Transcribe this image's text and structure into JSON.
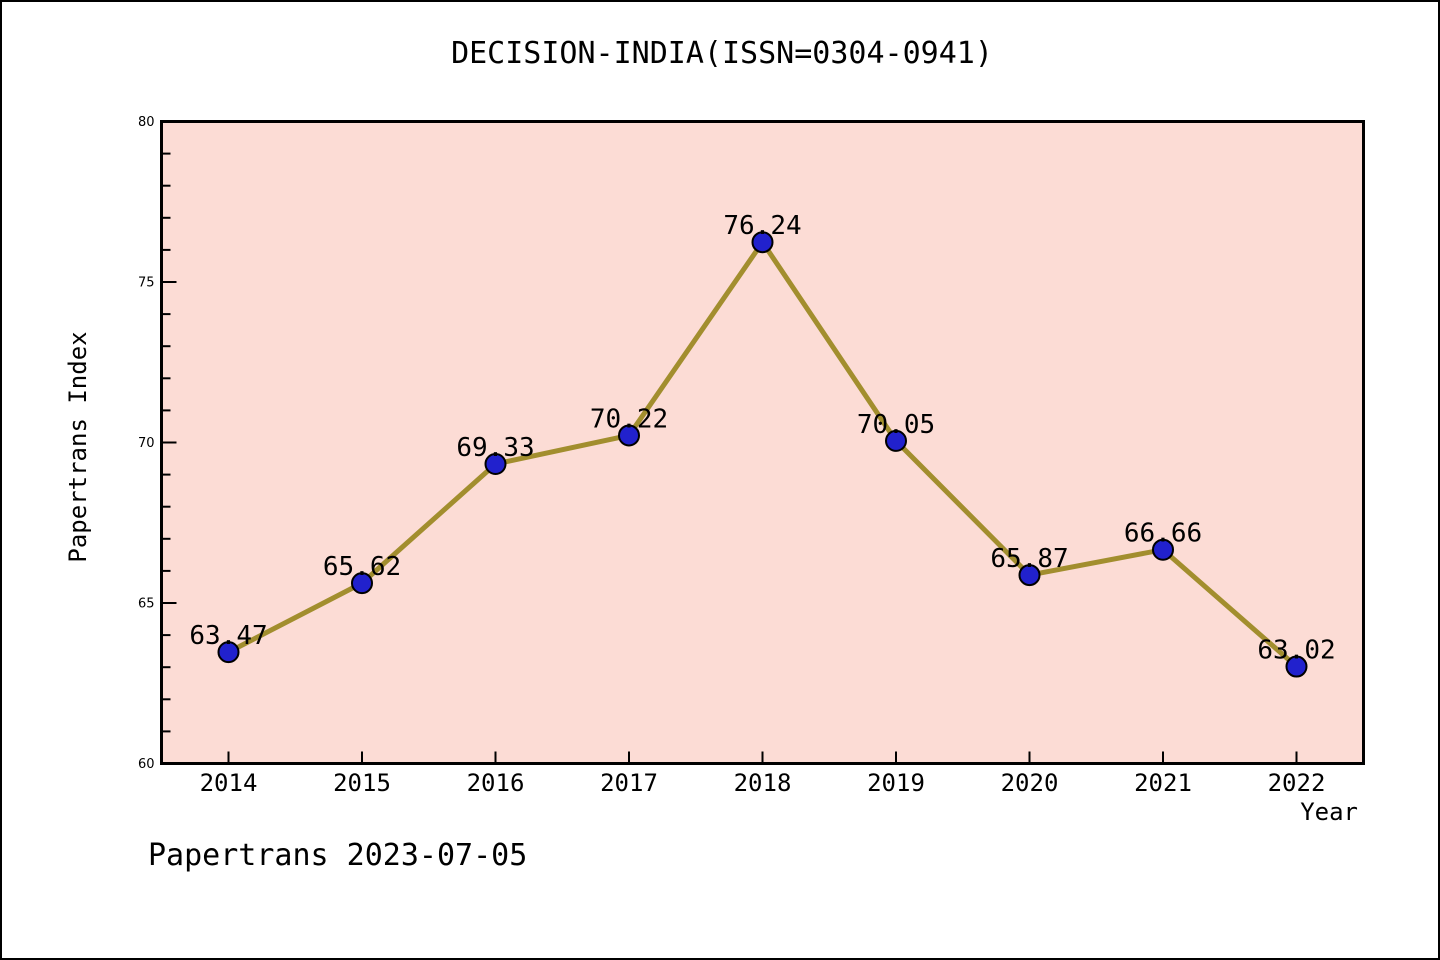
{
  "page": {
    "footer": "Papertrans 2023-07-05",
    "background": "#ffffff",
    "border_color": "#000000"
  },
  "chart_data": {
    "type": "line",
    "title": "DECISION-INDIA(ISSN=0304-0941)",
    "xlabel": "Year",
    "ylabel": "Papertrans Index",
    "categories": [
      2014,
      2015,
      2016,
      2017,
      2018,
      2019,
      2020,
      2021,
      2022
    ],
    "values": [
      63.47,
      65.62,
      69.33,
      70.22,
      76.24,
      70.05,
      65.87,
      66.66,
      63.02
    ],
    "point_labels": [
      "63.47",
      "65.62",
      "69.33",
      "70.22",
      "76.24",
      "70.05",
      "65.87",
      "66.66",
      "63.02"
    ],
    "ylim": [
      60,
      80
    ],
    "yticks": [
      60,
      65,
      70,
      75,
      80
    ],
    "y_minor_step": 1,
    "grid": false,
    "legend": "none",
    "colors": {
      "plot_bg": "#fcdcd5",
      "line": "#a28e2e",
      "marker_fill": "#2121cd",
      "marker_edge": "#000000",
      "axis": "#000000",
      "text": "#000000"
    }
  }
}
